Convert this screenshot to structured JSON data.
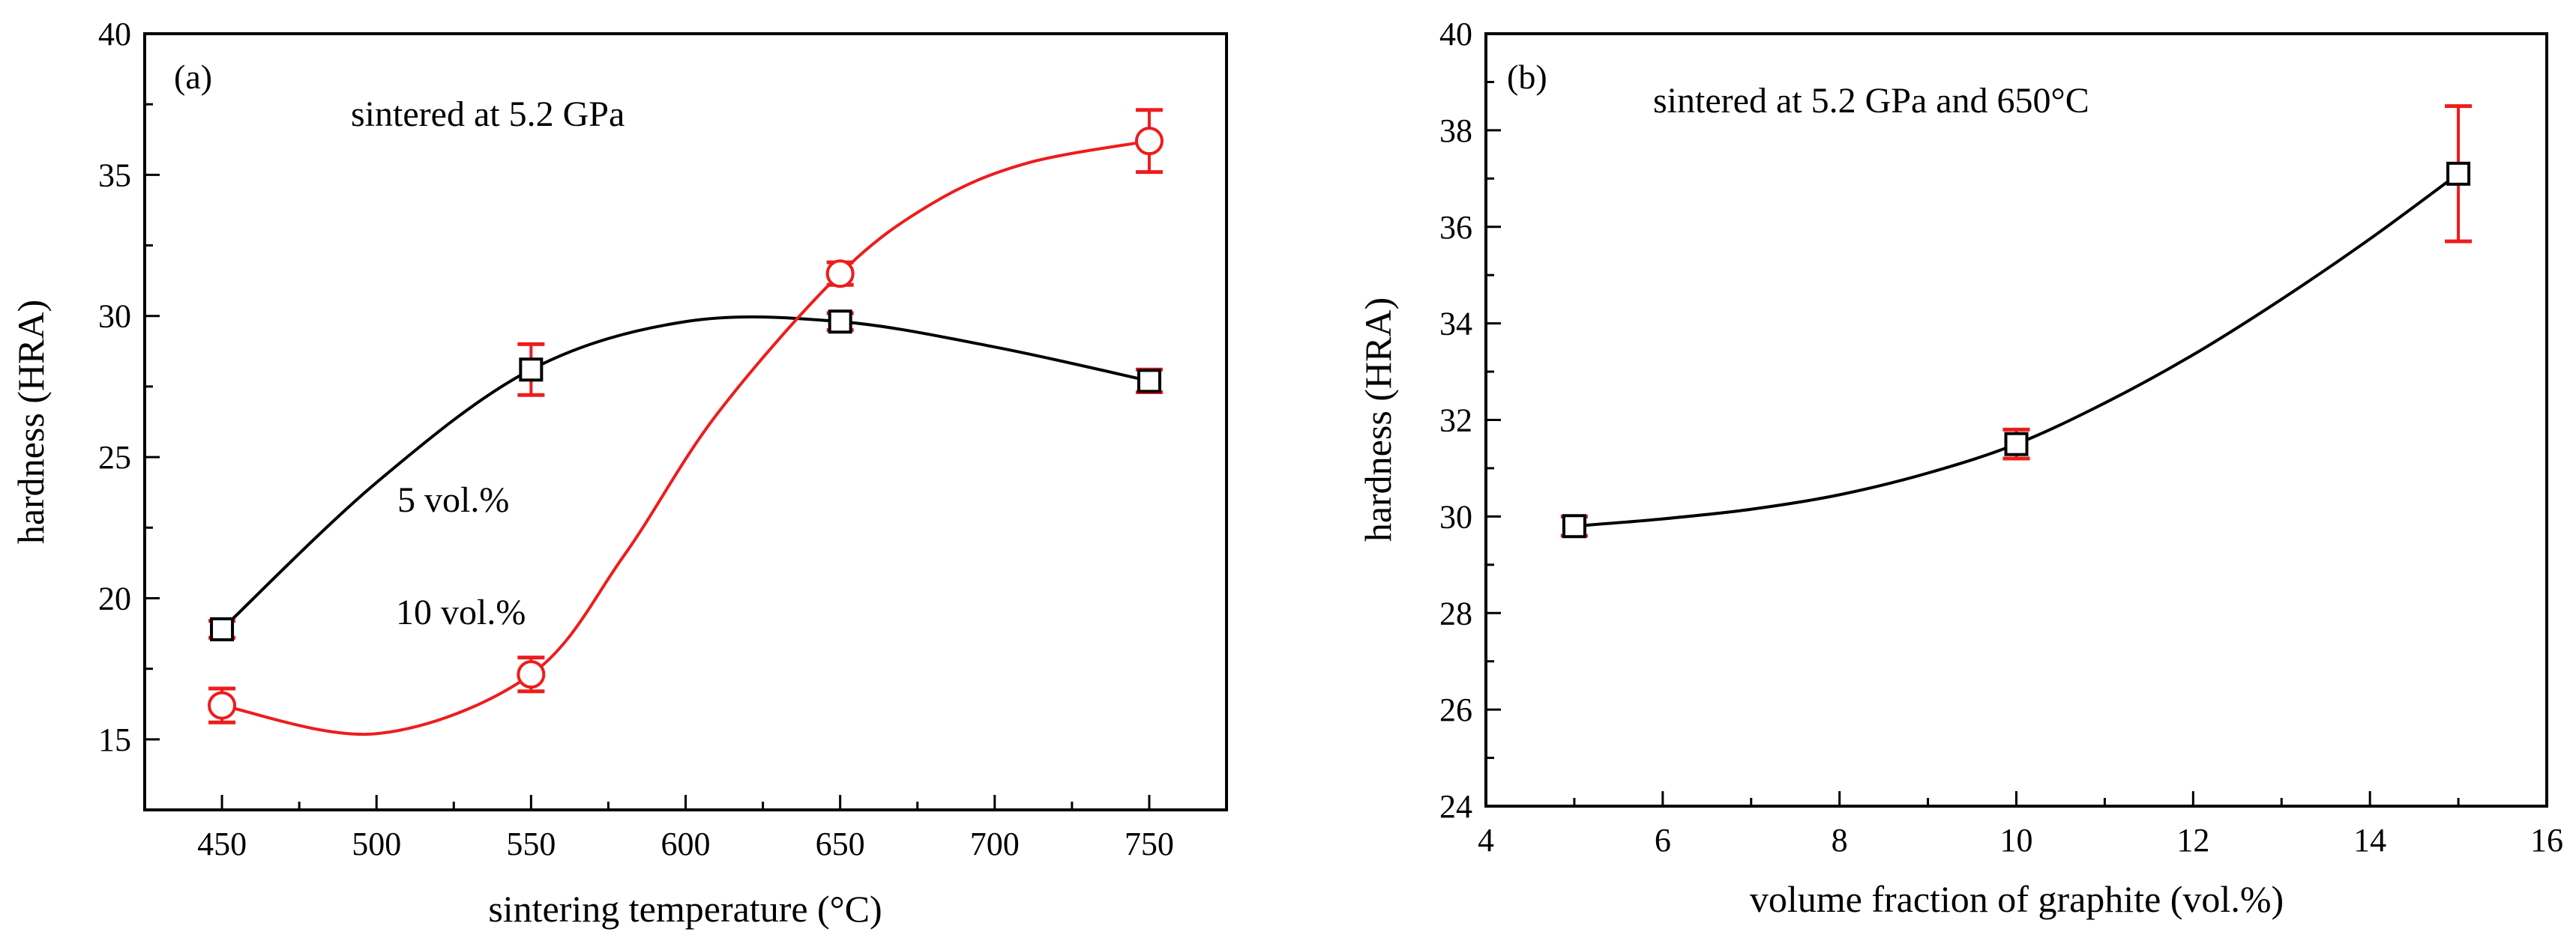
{
  "colors": {
    "series_black": "#000000",
    "series_red": "#ee1c1c",
    "axis": "#000000"
  },
  "chart_data": [
    {
      "type": "line",
      "panel_label": "(a)",
      "title": "sintered at 5.2 GPa",
      "xlabel": "sintering temperature (°C)",
      "ylabel": "hardness (HRA)",
      "xlim": [
        425,
        775
      ],
      "ylim": [
        12.5,
        40
      ],
      "xticks": [
        450,
        500,
        550,
        600,
        650,
        700,
        750
      ],
      "xtick_labels": [
        "450",
        "500",
        "550",
        "600",
        "650",
        "700",
        "750"
      ],
      "yticks": [
        15,
        20,
        25,
        30,
        35,
        40
      ],
      "ytick_labels": [
        "15",
        "20",
        "25",
        "30",
        "35",
        "40"
      ],
      "series": [
        {
          "name": "5 vol.%",
          "label_text": "5 vol.%",
          "marker": "square",
          "line_color": "#000000",
          "x": [
            450,
            550,
            650,
            750
          ],
          "y": [
            18.9,
            28.1,
            29.8,
            27.7
          ],
          "err": [
            0.3,
            0.9,
            0.3,
            0.4
          ],
          "fit_x": [
            450,
            500,
            550,
            600,
            650,
            700,
            750
          ],
          "fit_y": [
            18.9,
            24.1,
            28.1,
            29.8,
            29.8,
            28.9,
            27.7
          ]
        },
        {
          "name": "10 vol.%",
          "label_text": "10 vol.%",
          "marker": "circle",
          "line_color": "#ee1c1c",
          "x": [
            450,
            550,
            650,
            750
          ],
          "y": [
            16.2,
            17.3,
            31.5,
            36.2
          ],
          "err": [
            0.6,
            0.6,
            0.4,
            1.1
          ],
          "fit_x": [
            450,
            500,
            550,
            580,
            610,
            650,
            680,
            710,
            750
          ],
          "fit_y": [
            16.2,
            15.2,
            17.3,
            21.5,
            26.5,
            31.5,
            34.0,
            35.4,
            36.2
          ]
        }
      ]
    },
    {
      "type": "line",
      "panel_label": "(b)",
      "title": "sintered at 5.2 GPa and 650°C",
      "xlabel": "volume fraction of graphite (vol.%)",
      "ylabel": "hardness (HRA)",
      "xlim": [
        4,
        16
      ],
      "ylim": [
        24,
        40
      ],
      "xticks": [
        4,
        6,
        8,
        10,
        12,
        14,
        16
      ],
      "xtick_labels": [
        "4",
        "6",
        "8",
        "10",
        "12",
        "14",
        "16"
      ],
      "yticks": [
        24,
        26,
        28,
        30,
        32,
        34,
        36,
        38,
        40
      ],
      "ytick_labels": [
        "24",
        "26",
        "28",
        "30",
        "32",
        "34",
        "36",
        "38",
        "40"
      ],
      "series": [
        {
          "name": "hardness",
          "marker": "square",
          "line_color": "#000000",
          "x": [
            5,
            10,
            15
          ],
          "y": [
            29.8,
            31.5,
            37.1
          ],
          "err": [
            0.2,
            0.3,
            1.4
          ],
          "fit_x": [
            5,
            6,
            7,
            8,
            9,
            10,
            11,
            12,
            13,
            14,
            15
          ],
          "fit_y": [
            29.8,
            29.95,
            30.15,
            30.45,
            30.9,
            31.5,
            32.35,
            33.35,
            34.5,
            35.75,
            37.1
          ]
        }
      ]
    }
  ]
}
